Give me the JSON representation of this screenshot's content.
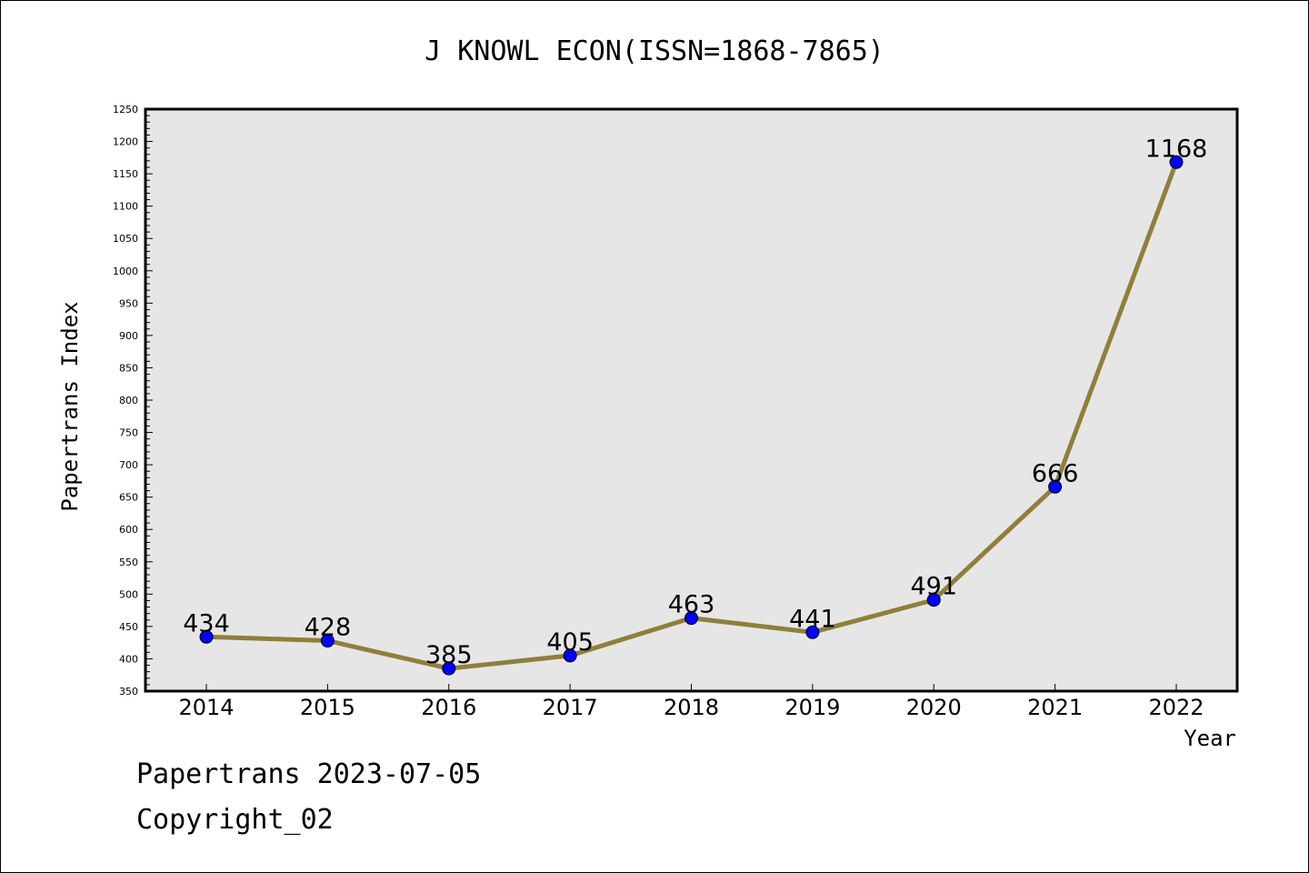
{
  "chart_data": {
    "type": "line",
    "title": "J KNOWL ECON(ISSN=1868-7865)",
    "xlabel": "Year",
    "ylabel": "Papertrans Index",
    "categories": [
      "2014",
      "2015",
      "2016",
      "2017",
      "2018",
      "2019",
      "2020",
      "2021",
      "2022"
    ],
    "series": [
      {
        "values": [
          434,
          428,
          385,
          405,
          463,
          441,
          491,
          666,
          1168
        ]
      }
    ],
    "data_labels": [
      "434",
      "428",
      "385",
      "405",
      "463",
      "441",
      "491",
      "666",
      "1168"
    ],
    "ylim": [
      350,
      1250
    ],
    "yticks": [
      "350",
      "400",
      "450",
      "500",
      "550",
      "600",
      "650",
      "700",
      "750",
      "800",
      "850",
      "900",
      "950",
      "1000",
      "1050",
      "1100",
      "1150",
      "1200",
      "1250"
    ],
    "grid": false,
    "legend": "none",
    "colors": {
      "line": "#8f7f3a",
      "marker": "#0000ff",
      "plot_background": "#e6e6e6"
    }
  },
  "footer": {
    "date_text": "Papertrans 2023-07-05",
    "copyright_text": "Copyright_02"
  }
}
